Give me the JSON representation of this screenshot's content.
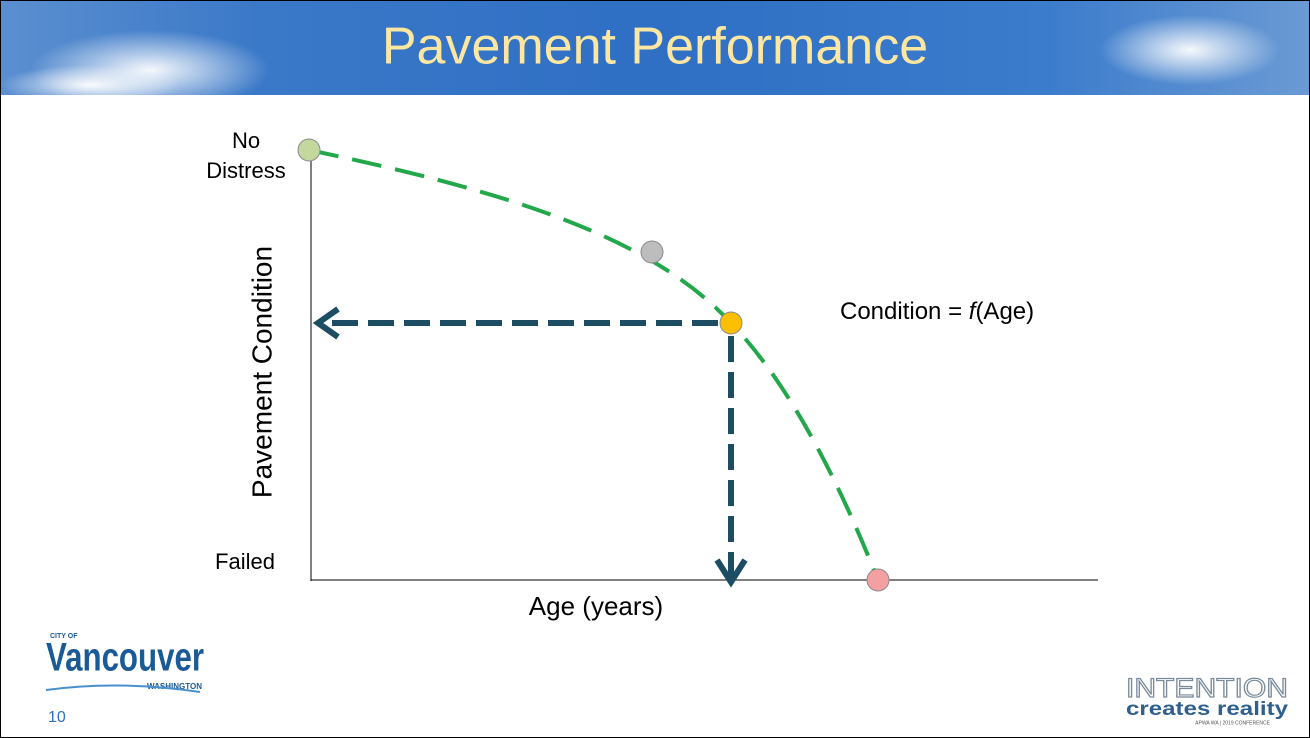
{
  "header": {
    "title": "Pavement Performance"
  },
  "diagram": {
    "top_label_line1": "No",
    "top_label_line2": "Distress",
    "bottom_label": "Failed",
    "y_axis_label": "Pavement Condition",
    "x_axis_label": "Age (years)",
    "equation": {
      "lhs": "Condition = ",
      "func": "f",
      "arg": "(Age)"
    }
  },
  "footer": {
    "left_logo": {
      "small": "CITY OF",
      "name": "Vancouver",
      "sub": "WASHINGTON"
    },
    "slide_number": "10",
    "right_logo": {
      "line1": "INTENTION",
      "line2": "creates reality",
      "line3": "APWA WA | 2019 CONFERENCE"
    }
  }
}
